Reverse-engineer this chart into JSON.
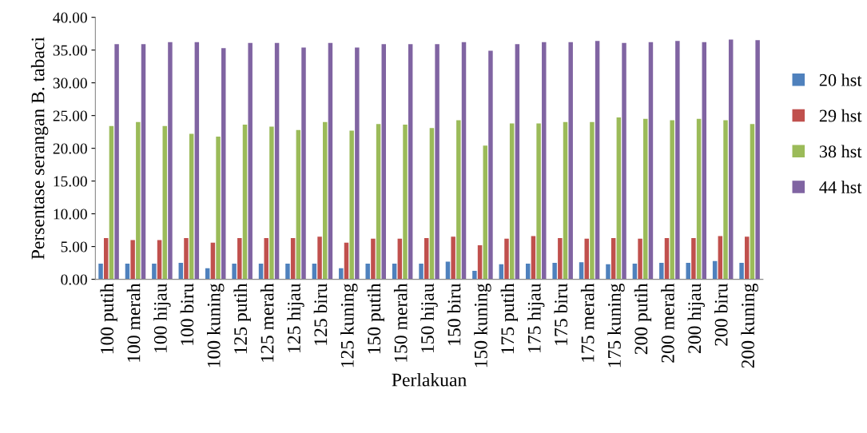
{
  "chart_data": {
    "type": "bar",
    "xlabel": "Perlakuan",
    "ylabel": "Persentase serangan B. tabaci",
    "categories": [
      "100 putih",
      "100 merah",
      "100 hijau",
      "100 biru",
      "100 kuning",
      "125 putih",
      "125 merah",
      "125 hijau",
      "125 biru",
      "125 kuning",
      "150 putih",
      "150 merah",
      "150 hijau",
      "150 biru",
      "150 kuning",
      "175 putih",
      "175 hijau",
      "175 biru",
      "175 merah",
      "175 kuning",
      "200 putih",
      "200 merah",
      "200 hijau",
      "200 biru",
      "200 kuning"
    ],
    "series": [
      {
        "name": "20 hst",
        "color": "#4f81bd",
        "values": [
          2.4,
          2.4,
          2.4,
          2.5,
          1.7,
          2.4,
          2.4,
          2.4,
          2.4,
          1.7,
          2.4,
          2.4,
          2.4,
          2.7,
          1.3,
          2.3,
          2.4,
          2.5,
          2.6,
          2.3,
          2.4,
          2.5,
          2.5,
          2.8,
          2.5
        ]
      },
      {
        "name": "29 hst",
        "color": "#c0504d",
        "values": [
          6.3,
          6.0,
          6.0,
          6.3,
          5.6,
          6.3,
          6.3,
          6.3,
          6.5,
          5.6,
          6.2,
          6.2,
          6.3,
          6.5,
          5.2,
          6.2,
          6.6,
          6.3,
          6.2,
          6.3,
          6.2,
          6.3,
          6.3,
          6.6,
          6.5
        ]
      },
      {
        "name": "38 hst",
        "color": "#9bbb59",
        "values": [
          23.4,
          24.0,
          23.4,
          22.2,
          21.8,
          23.6,
          23.3,
          22.8,
          24.0,
          22.7,
          23.7,
          23.6,
          23.1,
          24.3,
          20.4,
          23.8,
          23.8,
          24.0,
          24.0,
          24.7,
          24.5,
          24.3,
          24.5,
          24.3,
          23.7
        ]
      },
      {
        "name": "44 hst",
        "color": "#8064a2",
        "values": [
          35.9,
          35.9,
          36.2,
          36.2,
          35.3,
          36.1,
          36.1,
          35.4,
          36.1,
          35.4,
          35.9,
          35.9,
          35.9,
          36.2,
          34.9,
          35.9,
          36.2,
          36.2,
          36.4,
          36.1,
          36.2,
          36.4,
          36.2,
          36.6,
          36.5
        ]
      }
    ],
    "ylim": [
      0,
      40
    ],
    "yticks": [
      {
        "value": 0,
        "label": "0.00"
      },
      {
        "value": 5,
        "label": "5.00"
      },
      {
        "value": 10,
        "label": "10.00"
      },
      {
        "value": 15,
        "label": "15.00"
      },
      {
        "value": 20,
        "label": "20.00"
      },
      {
        "value": 25,
        "label": "25.00"
      },
      {
        "value": 30,
        "label": "30.00"
      },
      {
        "value": 35,
        "label": "35.00"
      },
      {
        "value": 40,
        "label": "40.00"
      }
    ],
    "grid": false,
    "legend": "right"
  }
}
